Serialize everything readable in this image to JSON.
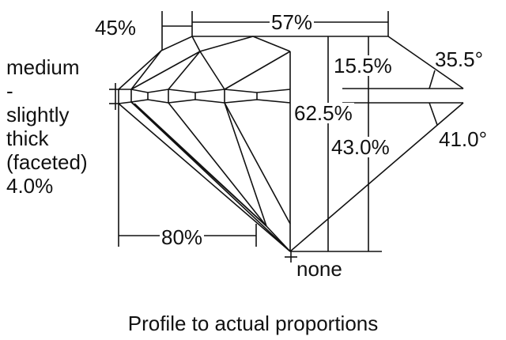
{
  "girdle_label": [
    "medium",
    "-",
    "slightly",
    "thick",
    "(faceted)",
    "4.0%"
  ],
  "star_length": "45%",
  "table": "57%",
  "crown_height": "15.5%",
  "crown_angle": "35.5°",
  "total_depth": "62.5%",
  "pavilion_depth": "43.0%",
  "pavilion_angle": "41.0°",
  "lower_half": "80%",
  "culet": "none",
  "caption": "Profile to actual proportions"
}
